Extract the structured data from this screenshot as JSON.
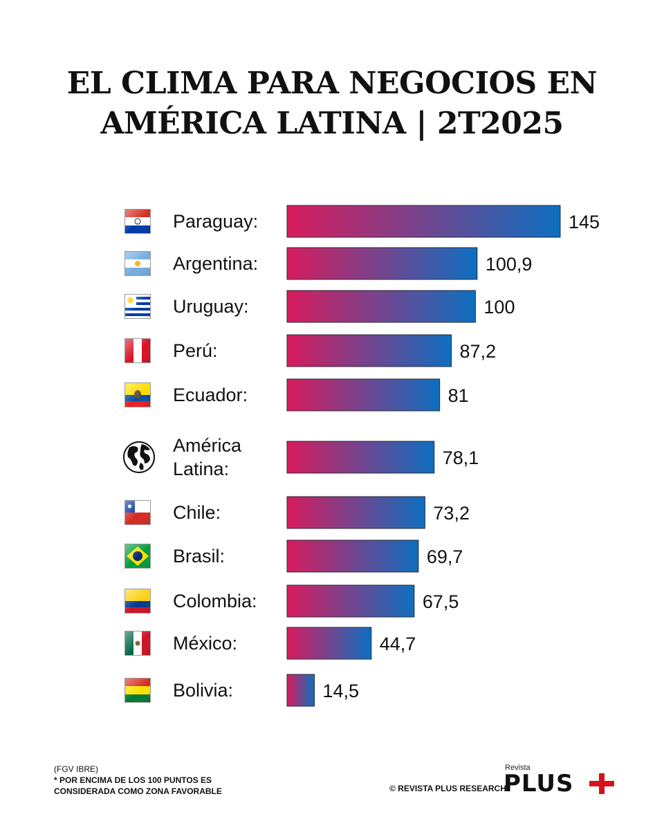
{
  "title_lines": [
    "EL CLIMA PARA NEGOCIOS EN",
    "AMÉRICA LATINA | 2T2025"
  ],
  "chart_data": {
    "type": "bar",
    "orientation": "horizontal",
    "categories": [
      [
        "Paraguay:"
      ],
      [
        "Argentina:"
      ],
      [
        "Uruguay:"
      ],
      [
        "Perú:"
      ],
      [
        "Ecuador:"
      ],
      [
        "América",
        "Latina:"
      ],
      [
        "Chile:"
      ],
      [
        "Brasil:"
      ],
      [
        "Colombia:"
      ],
      [
        "México:"
      ],
      [
        "Bolivia:"
      ]
    ],
    "values": [
      145,
      100.9,
      100,
      87.2,
      81,
      78.1,
      73.2,
      69.7,
      67.5,
      44.7,
      14.5
    ],
    "value_labels": [
      "145",
      "100,9",
      "100",
      "87,2",
      "81",
      "78,1",
      "73,2",
      "69,7",
      "67,5",
      "44,7",
      "14,5"
    ],
    "icons": [
      "paraguay-flag-icon",
      "argentina-flag-icon",
      "uruguay-flag-icon",
      "peru-flag-icon",
      "ecuador-flag-icon",
      "globe-icon",
      "chile-flag-icon",
      "brazil-flag-icon",
      "colombia-flag-icon",
      "mexico-flag-icon",
      "bolivia-flag-icon"
    ],
    "bar_gradient": [
      "#d81b5c",
      "#0d6fc0"
    ],
    "xlim": [
      0,
      145
    ],
    "grid": false
  },
  "footer": {
    "source": "(FGV IBRE)",
    "note_lines": [
      "* POR ENCIMA DE LOS 100 PUNTOS ES",
      "CONSIDERADA COMO ZONA FAVORABLE"
    ],
    "credit": "© REVISTA PLUS RESEARCH",
    "logo_small": "Revista",
    "logo_main": "PLUS"
  }
}
